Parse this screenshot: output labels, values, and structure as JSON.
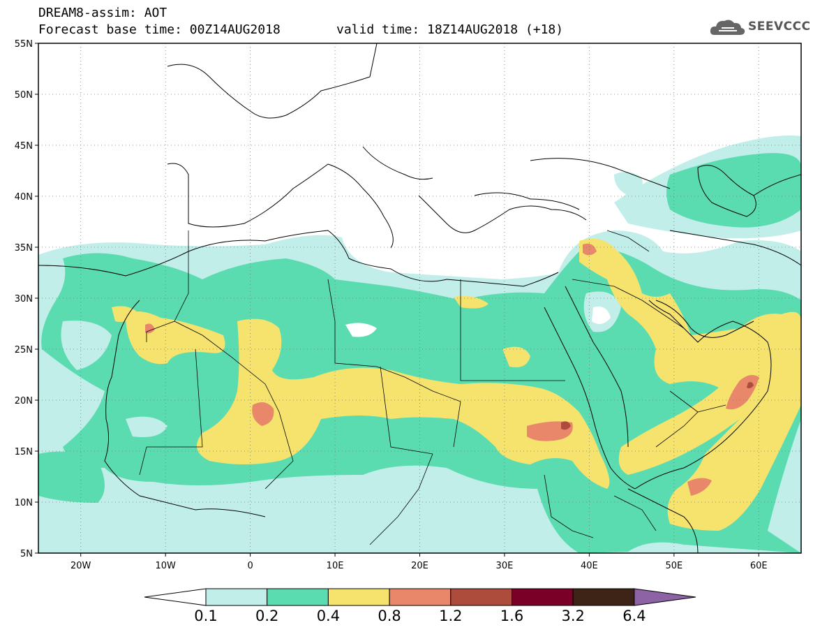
{
  "header": {
    "title": "DREAM8-assim: AOT",
    "base_time": "Forecast base time: 00Z14AUG2018",
    "valid_time": "valid time: 18Z14AUG2018 (+18)"
  },
  "logo": {
    "text": "SEEVCCC",
    "icon": "cloud-icon"
  },
  "map": {
    "lon_labels": [
      "20W",
      "10W",
      "0",
      "10E",
      "20E",
      "30E",
      "40E",
      "50E",
      "60E"
    ],
    "lat_labels": [
      "55N",
      "50N",
      "45N",
      "40N",
      "35N",
      "30N",
      "25N",
      "20N",
      "15N",
      "10N",
      "5N"
    ],
    "lon_range": [
      -25,
      65
    ],
    "lat_range": [
      5,
      55
    ],
    "grid": "dotted"
  },
  "colorbar": {
    "thresholds": [
      "0.1",
      "0.2",
      "0.4",
      "0.8",
      "1.2",
      "1.6",
      "3.2",
      "6.4"
    ],
    "colors": [
      "#ffffff",
      "#c2eeea",
      "#5bdcb0",
      "#f5e36e",
      "#e8876a",
      "#ad4b3c",
      "#7a0027",
      "#3d2417",
      "#8d63a6"
    ]
  }
}
